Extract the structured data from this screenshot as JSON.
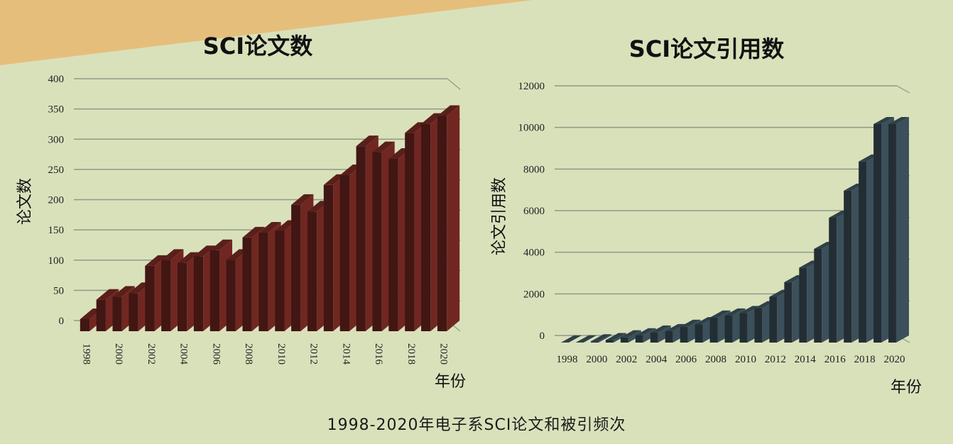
{
  "caption": "1998-2020年电子系SCI论文和被引频次",
  "colors": {
    "background": "#d9e1bb",
    "banner": "#e6be7c",
    "papers_bar": "#5a1f1a",
    "citations_bar": "#2f4048",
    "gridline": "#8f9a84"
  },
  "chart_data": [
    {
      "type": "bar",
      "style": "3d-column",
      "title": "SCI论文数",
      "xlabel": "年份",
      "ylabel": "论文数",
      "ylim": [
        0,
        400
      ],
      "yticks": [
        0,
        50,
        100,
        150,
        200,
        250,
        300,
        350,
        400
      ],
      "xtick_labels": [
        "1998",
        "2000",
        "2002",
        "2004",
        "2006",
        "2008",
        "2010",
        "2012",
        "2014",
        "2016",
        "2018",
        "2020"
      ],
      "xtick_rotation": "vertical",
      "grid": true,
      "categories": [
        "1998",
        "1999",
        "2000",
        "2001",
        "2002",
        "2003",
        "2004",
        "2005",
        "2006",
        "2007",
        "2008",
        "2009",
        "2010",
        "2011",
        "2012",
        "2013",
        "2014",
        "2015",
        "2016",
        "2017",
        "2018",
        "2019",
        "2020"
      ],
      "values": [
        20,
        52,
        57,
        63,
        108,
        118,
        113,
        124,
        134,
        118,
        155,
        163,
        166,
        209,
        198,
        242,
        258,
        306,
        296,
        285,
        328,
        343,
        356
      ]
    },
    {
      "type": "bar",
      "style": "3d-column",
      "title": "SCI论文引用数",
      "xlabel": "年份",
      "ylabel": "论文引用数",
      "ylim": [
        0,
        12000
      ],
      "yticks": [
        0,
        2000,
        4000,
        6000,
        8000,
        10000,
        12000
      ],
      "xtick_labels": [
        "1998",
        "2000",
        "2002",
        "2004",
        "2006",
        "2008",
        "2010",
        "2012",
        "2014",
        "2016",
        "2018",
        "2020"
      ],
      "xtick_rotation": "horizontal",
      "grid": true,
      "categories": [
        "1998",
        "1999",
        "2000",
        "2001",
        "2002",
        "2003",
        "2004",
        "2005",
        "2006",
        "2007",
        "2008",
        "2009",
        "2010",
        "2011",
        "2012",
        "2013",
        "2014",
        "2015",
        "2016",
        "2017",
        "2018",
        "2019",
        "2020"
      ],
      "values": [
        5,
        10,
        60,
        120,
        250,
        350,
        480,
        550,
        760,
        880,
        1200,
        1300,
        1420,
        1650,
        2200,
        2900,
        3600,
        4500,
        6000,
        7300,
        8700,
        10500,
        10500
      ]
    }
  ]
}
